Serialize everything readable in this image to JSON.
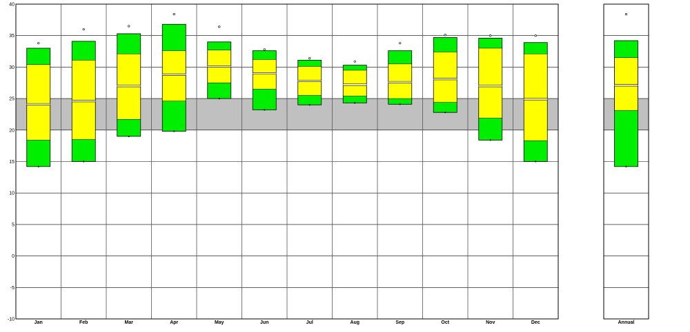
{
  "chart_data": {
    "type": "box",
    "title": "",
    "xlabel": "",
    "ylabel": "",
    "ylim": [
      -10,
      40
    ],
    "y_ticks": [
      "40",
      "35",
      "30",
      "25",
      "20",
      "15",
      "10",
      "5",
      "0",
      "-5",
      "-10"
    ],
    "comfort_band": [
      20,
      25
    ],
    "grid": true,
    "colors": {
      "outer_band": "#00ee00",
      "inner_band": "#ffff00",
      "comfort_band": "#c0c0c0",
      "box_border": "#000000",
      "mean_line": "#ffffff"
    },
    "categories": [
      "Jan",
      "Feb",
      "Mar",
      "Apr",
      "May",
      "Jun",
      "Jul",
      "Aug",
      "Sep",
      "Oct",
      "Nov",
      "Dec"
    ],
    "monthly": [
      {
        "label": "Jan",
        "min": 14.2,
        "p_low": 18.4,
        "mean": 24.1,
        "p_high": 30.4,
        "max": 33.0,
        "extreme_high": 33.8,
        "extreme_low": 14.2
      },
      {
        "label": "Feb",
        "min": 15.0,
        "p_low": 18.5,
        "mean": 24.6,
        "p_high": 31.1,
        "max": 34.1,
        "extreme_high": 36.0,
        "extreme_low": 15.0
      },
      {
        "label": "Mar",
        "min": 19.0,
        "p_low": 21.7,
        "mean": 27.0,
        "p_high": 32.1,
        "max": 35.3,
        "extreme_high": 36.5,
        "extreme_low": 19.0
      },
      {
        "label": "Apr",
        "min": 19.8,
        "p_low": 24.6,
        "mean": 28.8,
        "p_high": 32.6,
        "max": 36.8,
        "extreme_high": 38.4,
        "extreme_low": 19.8
      },
      {
        "label": "May",
        "min": 25.0,
        "p_low": 27.5,
        "mean": 30.1,
        "p_high": 32.7,
        "max": 34.0,
        "extreme_high": 36.4,
        "extreme_low": 25.0
      },
      {
        "label": "Jun",
        "min": 23.2,
        "p_low": 26.5,
        "mean": 29.0,
        "p_high": 31.2,
        "max": 32.6,
        "extreme_high": 32.8,
        "extreme_low": 23.2
      },
      {
        "label": "Jul",
        "min": 24.0,
        "p_low": 25.5,
        "mean": 27.8,
        "p_high": 30.1,
        "max": 31.1,
        "extreme_high": 31.4,
        "extreme_low": 24.0
      },
      {
        "label": "Aug",
        "min": 24.3,
        "p_low": 25.4,
        "mean": 27.2,
        "p_high": 29.5,
        "max": 30.3,
        "extreme_high": 30.9,
        "extreme_low": 24.3
      },
      {
        "label": "Sep",
        "min": 24.1,
        "p_low": 25.0,
        "mean": 27.6,
        "p_high": 30.5,
        "max": 32.6,
        "extreme_high": 33.8,
        "extreme_low": 24.1
      },
      {
        "label": "Oct",
        "min": 22.8,
        "p_low": 24.4,
        "mean": 28.1,
        "p_high": 32.4,
        "max": 34.7,
        "extreme_high": 35.1,
        "extreme_low": 22.8
      },
      {
        "label": "Nov",
        "min": 18.4,
        "p_low": 21.9,
        "mean": 27.0,
        "p_high": 33.0,
        "max": 34.6,
        "extreme_high": 35.0,
        "extreme_low": 18.4
      },
      {
        "label": "Dec",
        "min": 15.0,
        "p_low": 18.3,
        "mean": 24.9,
        "p_high": 32.1,
        "max": 33.9,
        "extreme_high": 35.0,
        "extreme_low": 15.0
      }
    ],
    "annual": {
      "label": "Annual",
      "min": 14.2,
      "p_low": 23.1,
      "mean": 27.1,
      "p_high": 31.5,
      "max": 34.2,
      "extreme_high": 38.4,
      "extreme_low": 14.2
    }
  }
}
